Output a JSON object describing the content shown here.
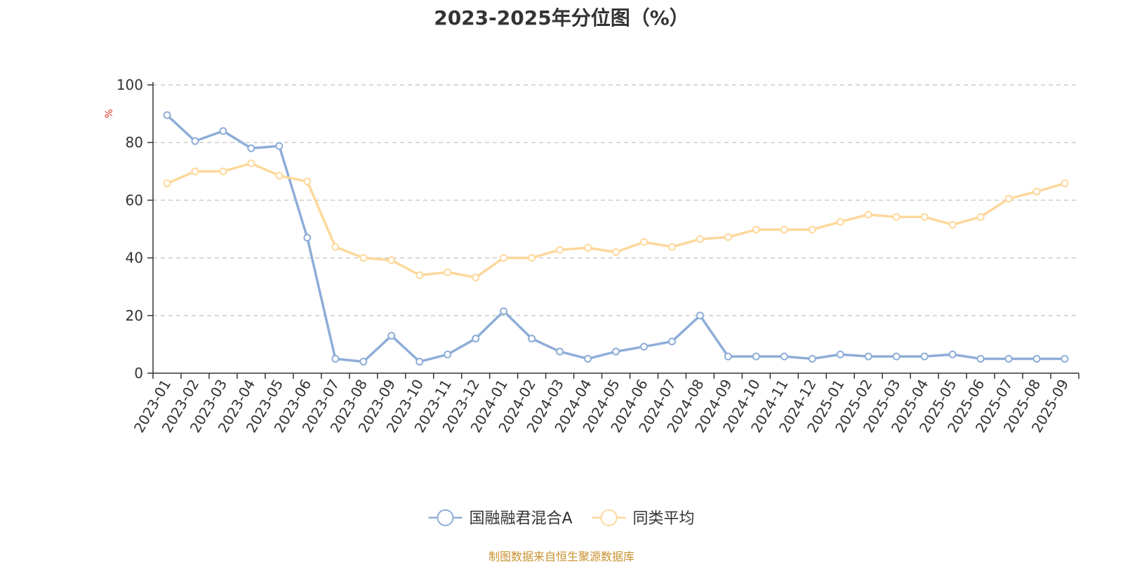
{
  "chart_data": {
    "type": "line",
    "title": "2023-2025年分位图（%）",
    "ylabel": "%",
    "ylim": [
      0,
      100
    ],
    "yticks": [
      0,
      20,
      40,
      60,
      80,
      100
    ],
    "grid": true,
    "legend_position": "bottom",
    "categories": [
      "2023-01",
      "2023-02",
      "2023-03",
      "2023-04",
      "2023-05",
      "2023-06",
      "2023-07",
      "2023-08",
      "2023-09",
      "2023-10",
      "2023-11",
      "2023-12",
      "2024-01",
      "2024-02",
      "2024-03",
      "2024-04",
      "2024-05",
      "2024-06",
      "2024-07",
      "2024-08",
      "2024-09",
      "2024-10",
      "2024-11",
      "2024-12",
      "2025-01",
      "2025-02",
      "2025-03",
      "2025-04",
      "2025-05",
      "2025-06",
      "2025-07",
      "2025-08",
      "2025-09"
    ],
    "series": [
      {
        "name": "国融融君混合A",
        "color": "#8eadd8",
        "values": [
          89.5,
          80.5,
          84,
          78,
          78.8,
          47,
          5,
          4,
          13,
          4,
          6.5,
          12,
          21.5,
          12,
          7.5,
          5,
          7.5,
          9.2,
          11,
          20,
          5.8,
          5.8,
          5.8,
          5,
          6.5,
          5.8,
          5.8,
          5.8,
          6.5,
          5,
          5,
          5,
          5
        ]
      },
      {
        "name": "同类平均",
        "color": "#fdd89b",
        "values": [
          65.8,
          70,
          70,
          72.8,
          68.5,
          66.5,
          43.8,
          40,
          39.2,
          34,
          35,
          33.2,
          40,
          40,
          42.8,
          43.5,
          42,
          45.5,
          43.8,
          46.5,
          47.2,
          49.8,
          49.8,
          49.8,
          52.5,
          55,
          54.2,
          54.2,
          51.5,
          54.2,
          60.5,
          63,
          65.8
        ]
      }
    ]
  },
  "source": "制图数据来自恒生聚源数据库",
  "colors": {
    "axis": "#333333",
    "grid": "#cccccc",
    "unit": "#e8332a",
    "source": "#c8912f"
  }
}
